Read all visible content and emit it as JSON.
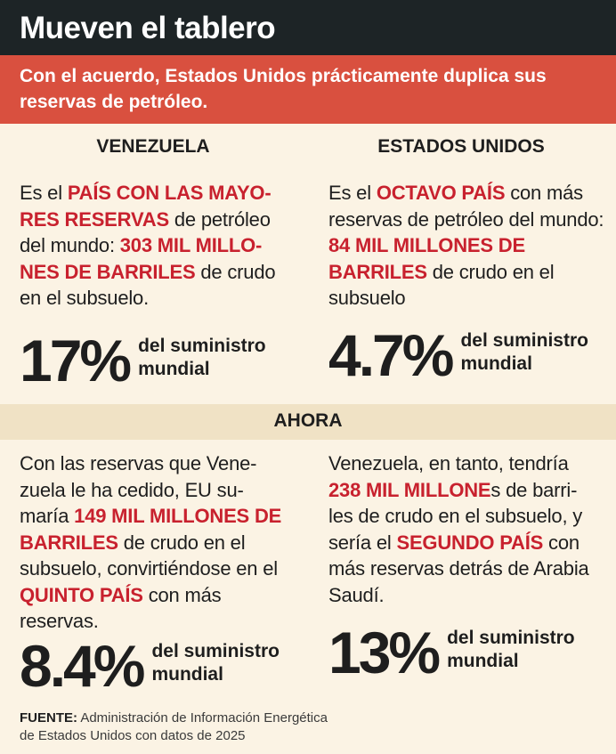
{
  "title": "Mueven el tablero",
  "subtitle": "Con el acuerdo, Estados Unidos prácticamente duplica sus reservas de petróleo.",
  "venezuela": {
    "heading": "VENEZUELA",
    "t1": "Es el ",
    "h1": "PAÍS CON LAS MAYO-RES RESERVAS",
    "t2": " de petróleo del mundo: ",
    "h2": "303 MIL MILLO-NES DE BARRILES",
    "t3": " de crudo en el subsuelo.",
    "stat_value": "17%",
    "stat_label_1": "del suministro",
    "stat_label_2": "mundial"
  },
  "estados_unidos": {
    "heading": "ESTADOS UNIDOS",
    "t1": "Es el ",
    "h1": "OCTAVO PAÍS",
    "t2": " con más reservas de petróleo del mundo: ",
    "h2": "84 MIL MILLONES DE BARRILES",
    "t3": " de crudo en el subsuelo",
    "stat_value": "4.7%",
    "stat_label_1": "del suministro",
    "stat_label_2": "mundial"
  },
  "ahora": {
    "heading": "AHORA",
    "left": {
      "t1": "Con las reservas que Vene-zuela le ha cedido, EU su-maría ",
      "h1": "149 MIL MILLONES DE BARRILES",
      "t2": " de crudo en el subsuelo, convirtiéndose en el ",
      "h2": "QUINTO PAÍS",
      "t3": " con más reservas.",
      "stat_value": "8.4%",
      "stat_label_1": "del suministro",
      "stat_label_2": "mundial"
    },
    "right": {
      "t1": "Venezuela, en tanto, tendría ",
      "h1": "238 MIL MILLONE",
      "t2": "s de barri-les de crudo en el subsuelo, y sería el ",
      "h2": "SEGUNDO PAÍS",
      "t3": " con más reservas detrás de Arabia Saudí.",
      "stat_value": "13%",
      "stat_label_1": "del suministro",
      "stat_label_2": "mundial"
    }
  },
  "source": {
    "label": "FUENTE:",
    "line1": " Administración de Información Energética",
    "line2": "de Estados Unidos con datos de 2025"
  },
  "colors": {
    "title_bg": "#1d2426",
    "subtitle_bg": "#d9503f",
    "highlight": "#c8212e",
    "ahora_bg": "#f0e2c5",
    "page_bg": "#fbf3e4"
  }
}
